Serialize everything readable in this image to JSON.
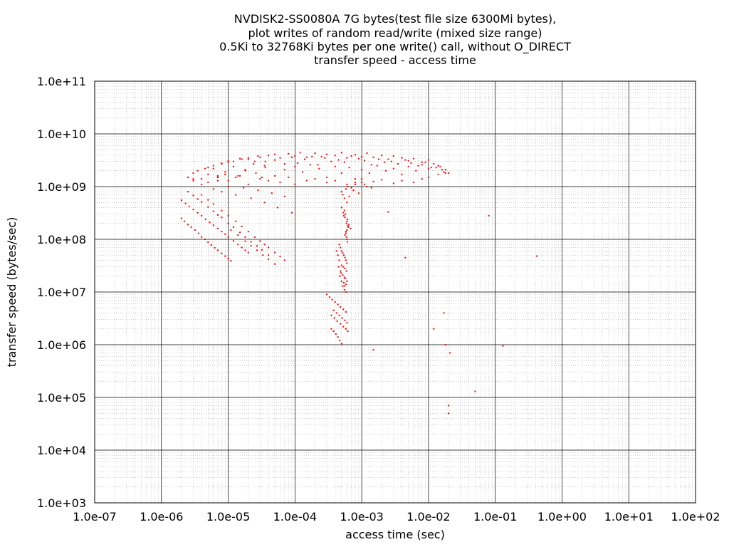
{
  "chart_data": {
    "type": "scatter",
    "title_lines": [
      "NVDISK2-SS0080A 7G bytes(test file size 6300Mi bytes),",
      "plot writes of random read/write (mixed size range)",
      "0.5Ki to 32768Ki bytes per one write() call, without O_DIRECT",
      "transfer speed - access time"
    ],
    "xlabel": "access time (sec)",
    "ylabel": "transfer speed (bytes/sec)",
    "x_scale": "log",
    "y_scale": "log",
    "xlim": [
      1e-07,
      100
    ],
    "ylim": [
      1000,
      100000000000
    ],
    "x_ticks": [
      {
        "value": 1e-07,
        "label": "1.0e-07"
      },
      {
        "value": 1e-06,
        "label": "1.0e-06"
      },
      {
        "value": 1e-05,
        "label": "1.0e-05"
      },
      {
        "value": 0.0001,
        "label": "1.0e-04"
      },
      {
        "value": 0.001,
        "label": "1.0e-03"
      },
      {
        "value": 0.01,
        "label": "1.0e-02"
      },
      {
        "value": 0.1,
        "label": "1.0e-01"
      },
      {
        "value": 1,
        "label": "1.0e+00"
      },
      {
        "value": 10,
        "label": "1.0e+01"
      },
      {
        "value": 100,
        "label": "1.0e+02"
      }
    ],
    "y_ticks": [
      {
        "value": 1000,
        "label": "1.0e+03"
      },
      {
        "value": 10000,
        "label": "1.0e+04"
      },
      {
        "value": 100000,
        "label": "1.0e+05"
      },
      {
        "value": 1000000,
        "label": "1.0e+06"
      },
      {
        "value": 10000000,
        "label": "1.0e+07"
      },
      {
        "value": 100000000,
        "label": "1.0e+08"
      },
      {
        "value": 1000000000,
        "label": "1.0e+09"
      },
      {
        "value": 10000000000,
        "label": "1.0e+10"
      },
      {
        "value": 100000000000,
        "label": "1.0e+11"
      }
    ],
    "grid": true,
    "minor_grid": true,
    "legend": "none",
    "series_color": "#ff0000",
    "series": [
      {
        "name": "",
        "x": [
          2e-06,
          2.2e-06,
          2.5e-06,
          2.8e-06,
          3.2e-06,
          3.6e-06,
          4e-06,
          4.5e-06,
          5e-06,
          5.6e-06,
          6.3e-06,
          7e-06,
          8e-06,
          9e-06,
          1e-05,
          1.1e-05,
          2e-06,
          2.3e-06,
          2.6e-06,
          3e-06,
          3.5e-06,
          4e-06,
          4.6e-06,
          5.3e-06,
          6e-06,
          7e-06,
          8e-06,
          9e-06,
          1e-05,
          1.2e-05,
          1.4e-05,
          1.6e-05,
          1.8e-05,
          2e-05,
          2.5e-06,
          3e-06,
          3.5e-06,
          4e-06,
          5e-06,
          6e-06,
          7e-06,
          8e-06,
          1e-05,
          1.2e-05,
          1.5e-05,
          1.8e-05,
          2.2e-05,
          2.7e-05,
          3.2e-05,
          4e-05,
          4e-06,
          5e-06,
          6e-06,
          8e-06,
          1e-05,
          1.3e-05,
          1.6e-05,
          2e-05,
          2.5e-05,
          3e-05,
          3.5e-05,
          4e-05,
          5e-05,
          6e-05,
          7e-05,
          1.1e-05,
          1.4e-05,
          1.8e-05,
          2.2e-05,
          2.7e-05,
          3.3e-05,
          4e-05,
          5e-05,
          2.5e-06,
          3e-06,
          3.5e-06,
          4e-06,
          4.5e-06,
          5e-06,
          6e-06,
          7e-06,
          8e-06,
          9e-06,
          1e-05,
          1.2e-05,
          1.4e-05,
          1.6e-05,
          1.8e-05,
          2e-05,
          2.4e-05,
          2.8e-05,
          3.2e-05,
          3.6e-05,
          5e-06,
          8e-06,
          1.2e-05,
          2e-05,
          3e-05,
          4e-05,
          5e-05,
          6e-05,
          8e-05,
          0.0001,
          0.00012,
          0.00015,
          0.0002,
          0.00025,
          0.0003,
          0.0004,
          0.0005,
          0.0006,
          0.0008,
          0.001,
          0.0012,
          0.0015,
          0.002,
          0.0025,
          0.003,
          0.004,
          0.005,
          0.006,
          0.008,
          0.01,
          0.012,
          0.015,
          0.018,
          7e-06,
          1e-05,
          1.5e-05,
          2.5e-05,
          3.5e-05,
          5e-05,
          7e-05,
          9e-05,
          0.00011,
          0.00014,
          0.00018,
          0.00022,
          0.00028,
          0.00035,
          0.00045,
          0.00055,
          0.0007,
          0.0009,
          0.0011,
          0.0014,
          0.0018,
          0.0022,
          0.0028,
          0.0035,
          0.0045,
          0.0055,
          0.007,
          0.009,
          0.011,
          0.014,
          0.017,
          3e-06,
          4e-06,
          6e-06,
          9e-06,
          1.3e-05,
          1.8e-05,
          2.6e-05,
          3.6e-05,
          5e-05,
          7e-05,
          0.0001,
          0.00013,
          0.00017,
          0.00023,
          0.0003,
          0.0004,
          0.0005,
          0.00065,
          0.0008,
          0.001,
          0.0013,
          0.0017,
          0.0023,
          0.003,
          0.004,
          0.005,
          0.0065,
          0.008,
          0.01,
          0.013,
          0.016,
          0.02,
          3e-06,
          5e-06,
          7e-06,
          1e-05,
          1.5e-05,
          2e-05,
          3e-05,
          4e-05,
          6e-05,
          8e-05,
          0.0001,
          0.00015,
          0.0002,
          0.0003,
          0.0004,
          0.0006,
          0.0008,
          0.001,
          0.0015,
          0.002,
          0.003,
          0.004,
          0.006,
          0.008,
          0.01,
          0.014,
          0.018,
          6e-06,
          8e-06,
          1e-05,
          1.3e-05,
          1.7e-05,
          2.2e-05,
          2.8e-05,
          3.5e-05,
          4.5e-05,
          5.5e-05,
          7e-05,
          9e-05,
          0.0005,
          0.00052,
          0.00055,
          0.00058,
          0.0006,
          0.00062,
          0.00065,
          0.0007,
          0.00075,
          0.0008,
          0.0009,
          0.001,
          0.0011,
          0.0012,
          0.0014,
          0.0005,
          0.00053,
          0.00056,
          0.0006,
          0.00064,
          0.00068,
          0.00055,
          0.00061,
          0.00057,
          0.00059,
          0.00063,
          0.00054,
          0.0006,
          0.00058,
          0.00062,
          0.00056,
          0.0006,
          0.00059,
          0.00061,
          0.00058,
          0.00046,
          0.00048,
          0.0005,
          0.00052,
          0.00054,
          0.00056,
          0.00058,
          0.0006,
          0.0005,
          0.00053,
          0.00056,
          0.00059,
          0.00049,
          0.00052,
          0.00055,
          0.00057,
          0.0006,
          0.00054,
          0.00058,
          0.00055,
          0.00042,
          0.00044,
          0.00046,
          0.00045,
          0.00048,
          0.00047,
          0.0005,
          0.00052,
          0.00055,
          0.00058,
          0.0003,
          0.00033,
          0.00036,
          0.0004,
          0.00044,
          0.00048,
          0.00053,
          0.00058,
          0.00038,
          0.00042,
          0.00046,
          0.00051,
          0.00056,
          0.0006,
          0.00035,
          0.00039,
          0.00043,
          0.00048,
          0.00053,
          0.00058,
          0.00062,
          0.00035,
          0.00038,
          0.00041,
          0.00044,
          0.00047,
          0.0005,
          0.0025,
          0.0045,
          0.012,
          0.017,
          0.018,
          0.021,
          0.08,
          0.42,
          0.13,
          0.05,
          0.02,
          0.02,
          0.0015
        ],
        "y": [
          250000000.0,
          220000000.0,
          190000000.0,
          170000000.0,
          150000000.0,
          130000000.0,
          110000000.0,
          100000000.0,
          88000000.0,
          78000000.0,
          69000000.0,
          62000000.0,
          54000000.0,
          48000000.0,
          43000000.0,
          39000000.0,
          550000000.0,
          480000000.0,
          420000000.0,
          370000000.0,
          320000000.0,
          280000000.0,
          240000000.0,
          210000000.0,
          185000000.0,
          160000000.0,
          140000000.0,
          125000000.0,
          110000000.0,
          93000000.0,
          80000000.0,
          70000000.0,
          62000000.0,
          56000000.0,
          800000000.0,
          680000000.0,
          580000000.0,
          510000000.0,
          410000000.0,
          340000000.0,
          290000000.0,
          260000000.0,
          200000000.0,
          170000000.0,
          135000000.0,
          110000000.0,
          90000000.0,
          75000000.0,
          63000000.0,
          50000000.0,
          700000000.0,
          560000000.0,
          470000000.0,
          350000000.0,
          280000000.0,
          220000000.0,
          175000000.0,
          140000000.0,
          110000000.0,
          93000000.0,
          80000000.0,
          70000000.0,
          56000000.0,
          47000000.0,
          40000000.0,
          150000000.0,
          120000000.0,
          92000000.0,
          75000000.0,
          62000000.0,
          50000000.0,
          42000000.0,
          34000000.0,
          1500000000.0,
          1800000000.0,
          2000000000.0,
          1400000000.0,
          2200000000.0,
          1700000000.0,
          2500000000.0,
          1300000000.0,
          2800000000.0,
          1900000000.0,
          3100000000.0,
          2400000000.0,
          1600000000.0,
          3300000000.0,
          2100000000.0,
          3500000000.0,
          2700000000.0,
          3800000000.0,
          1500000000.0,
          3000000000.0,
          2300000000.0,
          2700000000.0,
          3000000000.0,
          3300000000.0,
          3600000000.0,
          3900000000.0,
          4100000000.0,
          3500000000.0,
          4200000000.0,
          3800000000.0,
          4400000000.0,
          3600000000.0,
          4300000000.0,
          3700000000.0,
          4100000000.0,
          3900000000.0,
          4400000000.0,
          3500000000.0,
          4000000000.0,
          3700000000.0,
          4300000000.0,
          3600000000.0,
          3900000000.0,
          3300000000.0,
          3800000000.0,
          3500000000.0,
          3100000000.0,
          3400000000.0,
          2900000000.0,
          3200000000.0,
          2700000000.0,
          2400000000.0,
          2100000000.0,
          1600000000.0,
          2900000000.0,
          3400000000.0,
          3000000000.0,
          2500000000.0,
          3200000000.0,
          2700000000.0,
          3600000000.0,
          2800000000.0,
          3300000000.0,
          3700000000.0,
          2600000000.0,
          3500000000.0,
          3000000000.0,
          3200000000.0,
          2900000000.0,
          3800000000.0,
          3400000000.0,
          3100000000.0,
          2600000000.0,
          3300000000.0,
          2900000000.0,
          3000000000.0,
          2700000000.0,
          3200000000.0,
          2800000000.0,
          2500000000.0,
          2900000000.0,
          2300000000.0,
          2500000000.0,
          1900000000.0,
          1300000000.0,
          1100000000.0,
          2200000000.0,
          1700000000.0,
          1500000000.0,
          2000000000.0,
          1800000000.0,
          2300000000.0,
          1600000000.0,
          2100000000.0,
          2400000000.0,
          1900000000.0,
          2600000000.0,
          2200000000.0,
          1500000000.0,
          2400000000.0,
          1800000000.0,
          2300000000.0,
          1400000000.0,
          2100000000.0,
          1800000000.0,
          2500000000.0,
          2000000000.0,
          2200000000.0,
          1700000000.0,
          2400000000.0,
          2000000000.0,
          2600000000.0,
          2200000000.0,
          2300000000.0,
          2100000000.0,
          1800000000.0,
          1400000000.0,
          1200000000.0,
          1500000000.0,
          1300000000.0,
          1600000000.0,
          1100000000.0,
          1400000000.0,
          1300000000.0,
          1200000000.0,
          1500000000.0,
          1100000000.0,
          1300000000.0,
          1400000000.0,
          1200000000.0,
          1300000000.0,
          1100000000.0,
          1200000000.0,
          1400000000.0,
          1250000000.0,
          1350000000.0,
          1150000000.0,
          1300000000.0,
          1200000000.0,
          1400000000.0,
          1500000000.0,
          1700000000.0,
          1800000000.0,
          900000000.0,
          800000000.0,
          1000000000.0,
          700000000.0,
          950000000.0,
          600000000.0,
          850000000.0,
          500000000.0,
          750000000.0,
          400000000.0,
          650000000.0,
          320000000.0,
          800000000.0,
          700000000.0,
          600000000.0,
          900000000.0,
          500000000.0,
          1000000000.0,
          650000000.0,
          950000000.0,
          850000000.0,
          1100000000.0,
          750000000.0,
          1200000000.0,
          1100000000.0,
          1000000000.0,
          950000000.0,
          400000000.0,
          320000000.0,
          260000000.0,
          220000000.0,
          190000000.0,
          160000000.0,
          350000000.0,
          240000000.0,
          300000000.0,
          200000000.0,
          170000000.0,
          280000000.0,
          150000000.0,
          130000000.0,
          180000000.0,
          120000000.0,
          100000000.0,
          110000000.0,
          90000000.0,
          140000000.0,
          80000000.0,
          70000000.0,
          60000000.0,
          55000000.0,
          50000000.0,
          45000000.0,
          40000000.0,
          35000000.0,
          32000000.0,
          30000000.0,
          28000000.0,
          25000000.0,
          23000000.0,
          21000000.0,
          19000000.0,
          18000000.0,
          16000000.0,
          15000000.0,
          14000000.0,
          13000000.0,
          60000000.0,
          50000000.0,
          40000000.0,
          30000000.0,
          25000000.0,
          20000000.0,
          16000000.0,
          13000000.0,
          11000000.0,
          10000000.0,
          9000000.0,
          8000000.0,
          7200000.0,
          6500000.0,
          5800000.0,
          5200000.0,
          4700000.0,
          4200000.0,
          4500000.0,
          4000000.0,
          3600000.0,
          3200000.0,
          2900000.0,
          2600000.0,
          3600000.0,
          3200000.0,
          2800000.0,
          2500000.0,
          2200000.0,
          2000000.0,
          1800000.0,
          2000000.0,
          1800000.0,
          1600000.0,
          1400000.0,
          1200000.0,
          1050000.0,
          330000000.0,
          45000000.0,
          2000000.0,
          4000000.0,
          1000000.0,
          700000.0,
          280000000.0,
          48000000.0,
          950000.0,
          130000.0,
          70000.0,
          50000.0,
          800000.0
        ]
      }
    ]
  }
}
